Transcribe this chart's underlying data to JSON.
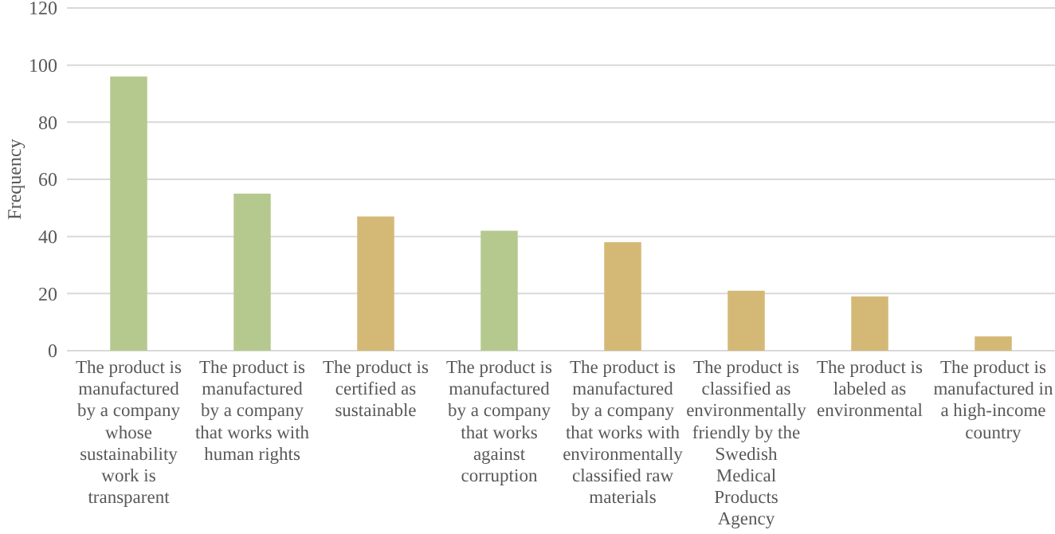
{
  "chart_data": {
    "type": "bar",
    "ylabel": "Frequency",
    "categories": [
      "The product is manufactured by a company whose sustainability work is transparent",
      "The product is manufactured by a company that works with human rights",
      "The product is certified as sustainable",
      "The product is manufactured by a company that works against corruption",
      "The product is manufactured by a company that works with environmentally classified raw materials",
      "The product is classified as environmentally friendly by the Swedish Medical Products Agency",
      "The product is labeled as environmental",
      "The product is manufactured in a high-income country"
    ],
    "values": [
      96,
      55,
      47,
      42,
      38,
      21,
      19,
      5
    ],
    "colors": [
      "#b5c98f",
      "#b5c98f",
      "#d4b976",
      "#b5c98f",
      "#d4b976",
      "#d4b976",
      "#d4b976",
      "#d4b976"
    ],
    "ylim": [
      0,
      120
    ],
    "yticks": [
      0,
      20,
      40,
      60,
      80,
      100,
      120
    ],
    "grid": "y"
  }
}
